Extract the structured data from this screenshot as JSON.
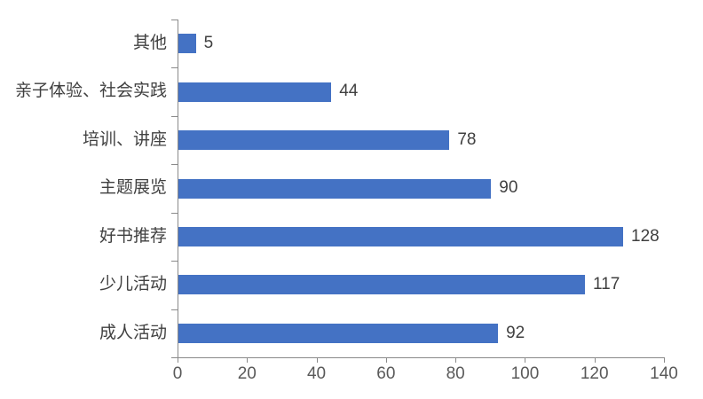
{
  "chart_data": {
    "type": "bar",
    "orientation": "horizontal",
    "categories": [
      "其他",
      "亲子体验、社会实践",
      "培训、讲座",
      "主题展览",
      "好书推荐",
      "少儿活动",
      "成人活动"
    ],
    "values": [
      5,
      44,
      78,
      90,
      128,
      117,
      92
    ],
    "category_order_note": "listed top to bottom as displayed",
    "xlim": [
      0,
      140
    ],
    "xticks": [
      0,
      20,
      40,
      60,
      80,
      100,
      120,
      140
    ],
    "grid": false,
    "legend": "none",
    "title": "",
    "colors": {
      "bar": "#4472C4",
      "axis_line": "#8a8a8a",
      "axis_tick_label": "#595959",
      "data_label": "#404040",
      "category_label": "#404040",
      "background": "#ffffff"
    }
  }
}
